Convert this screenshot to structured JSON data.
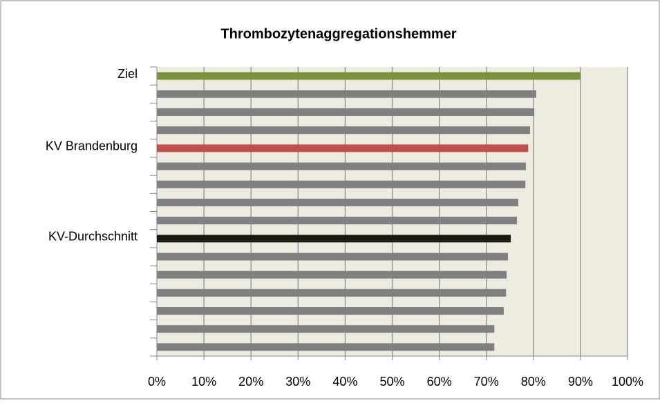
{
  "chart_data": {
    "type": "bar",
    "orientation": "horizontal",
    "title": "Thrombozytenaggregationshemmer",
    "categories": [
      "Ziel",
      null,
      null,
      null,
      "KV Brandenburg",
      null,
      null,
      null,
      null,
      "KV-Durchschnitt",
      null,
      null,
      null,
      null,
      null,
      null
    ],
    "values": [
      90,
      80.6,
      80.2,
      79.3,
      78.9,
      78.4,
      78.3,
      76.8,
      76.5,
      75.2,
      74.6,
      74.3,
      74.2,
      73.7,
      71.7,
      71.7
    ],
    "colors": [
      "#77933c",
      "#808080",
      "#808080",
      "#808080",
      "#c0504d",
      "#808080",
      "#808080",
      "#808080",
      "#808080",
      "#1a1a12",
      "#808080",
      "#808080",
      "#808080",
      "#808080",
      "#808080",
      "#808080"
    ],
    "xlim": [
      0,
      100
    ],
    "xticks": [
      {
        "value": 0,
        "label": "0%"
      },
      {
        "value": 10,
        "label": "10%"
      },
      {
        "value": 20,
        "label": "20%"
      },
      {
        "value": 30,
        "label": "30%"
      },
      {
        "value": 40,
        "label": "40%"
      },
      {
        "value": 50,
        "label": "50%"
      },
      {
        "value": 60,
        "label": "60%"
      },
      {
        "value": 70,
        "label": "70%"
      },
      {
        "value": 80,
        "label": "80%"
      },
      {
        "value": 90,
        "label": "90%"
      },
      {
        "value": 100,
        "label": "100%"
      }
    ],
    "grid": true
  }
}
